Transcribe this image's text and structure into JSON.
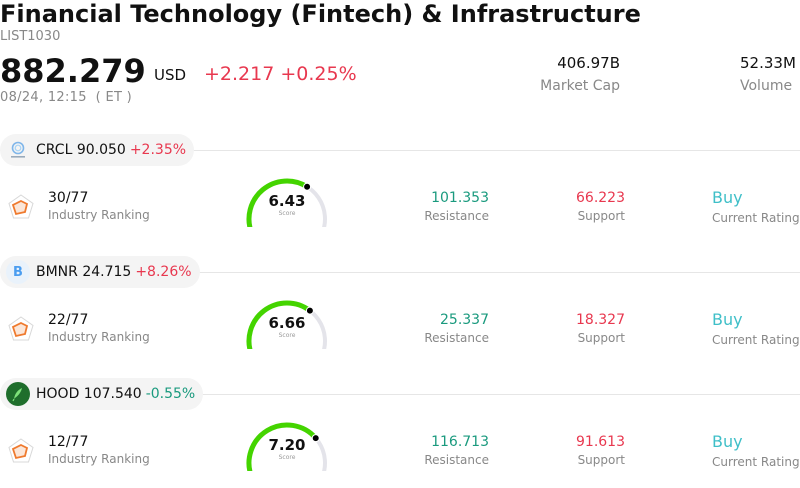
{
  "header": {
    "title": "Financial Technology (Fintech) & Infrastructure",
    "code": "LIST1030",
    "price": "882.279",
    "currency": "USD",
    "change": "+2.217 +0.25%",
    "timestamp": "08/24, 12:15  ( ET )",
    "market_cap_value": "406.97B",
    "market_cap_label": "Market Cap",
    "volume_value": "52.33M",
    "volume_label": "Volume"
  },
  "colors": {
    "up": "#e8384f",
    "down": "#1a9a7e",
    "rating": "#3fbfc8",
    "gauge_fill": "#44d400",
    "gauge_track": "#e4e4ea"
  },
  "stocks": [
    {
      "symbol_price": "CRCL 90.050",
      "change": "+2.35%",
      "direction": "up",
      "icon": "circle-logo-icon",
      "ranking": "30/77",
      "ranking_label": "Industry Ranking",
      "score": "6.43",
      "score_label": "Score",
      "score_fraction": 0.643,
      "resistance": "101.353",
      "resistance_label": "Resistance",
      "support": "66.223",
      "support_label": "Support",
      "rating": "Buy",
      "rating_label": "Current Rating"
    },
    {
      "symbol_price": "BMNR 24.715",
      "change": "+8.26%",
      "direction": "up",
      "icon": "b-letter-icon",
      "icon_letter": "B",
      "ranking": "22/77",
      "ranking_label": "Industry Ranking",
      "score": "6.66",
      "score_label": "Score",
      "score_fraction": 0.666,
      "resistance": "25.337",
      "resistance_label": "Resistance",
      "support": "18.327",
      "support_label": "Support",
      "rating": "Buy",
      "rating_label": "Current Rating"
    },
    {
      "symbol_price": "HOOD 107.540",
      "change": "-0.55%",
      "direction": "down",
      "icon": "feather-logo-icon",
      "ranking": "12/77",
      "ranking_label": "Industry Ranking",
      "score": "7.20",
      "score_label": "Score",
      "score_fraction": 0.72,
      "resistance": "116.713",
      "resistance_label": "Resistance",
      "support": "91.613",
      "support_label": "Support",
      "rating": "Buy",
      "rating_label": "Current Rating"
    }
  ]
}
